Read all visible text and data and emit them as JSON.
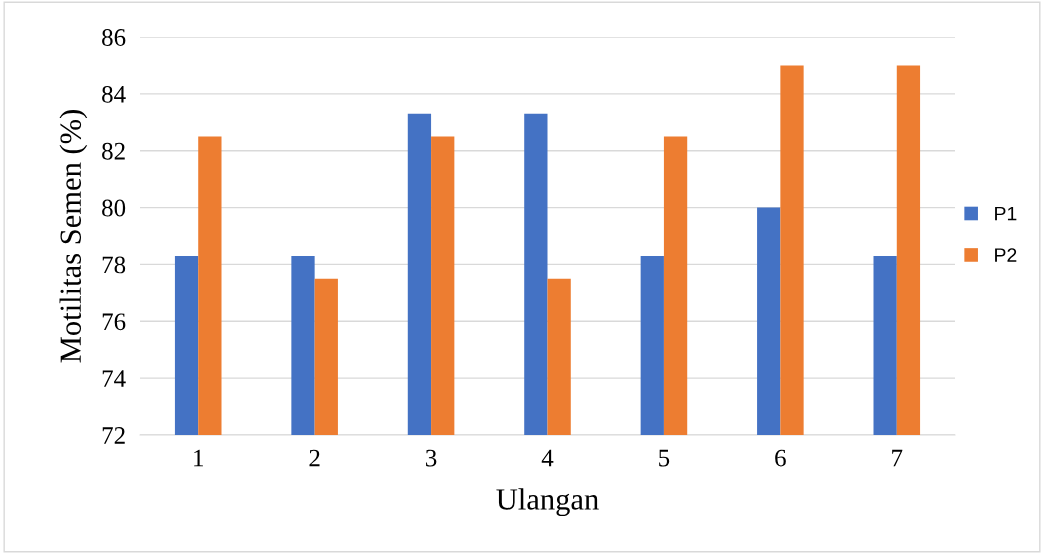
{
  "chart_data": {
    "type": "bar",
    "xlabel": "Ulangan",
    "ylabel": "Motilitas Semen (%)",
    "categories": [
      "1",
      "2",
      "3",
      "4",
      "5",
      "6",
      "7"
    ],
    "series": [
      {
        "name": "P1",
        "color": "#4472c4",
        "values": [
          78.3,
          78.3,
          83.3,
          83.3,
          78.3,
          80,
          78.3
        ]
      },
      {
        "name": "P2",
        "color": "#ed7d31",
        "values": [
          82.5,
          77.5,
          82.5,
          77.5,
          82.5,
          85,
          85
        ]
      }
    ],
    "ylim": [
      72,
      86
    ],
    "yticks": [
      72,
      74,
      76,
      78,
      80,
      82,
      84,
      86
    ],
    "grid": "y",
    "legend": "right"
  }
}
